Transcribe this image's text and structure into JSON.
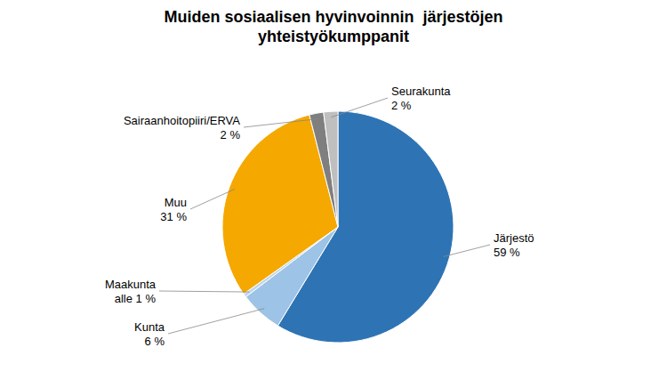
{
  "chart_data": {
    "type": "pie",
    "title": "Muiden sosiaalisen hyvinvoinnin  järjestöjen\nyhteistyökumppanit",
    "categories": [
      "Järjestö",
      "Kunta",
      "Maakunta",
      "Muu",
      "Sairaanhoitopiiri/ERVA",
      "Seurakunta"
    ],
    "values": [
      59,
      6,
      0.5,
      31,
      2,
      2
    ],
    "value_labels": [
      "59 %",
      "6 %",
      "alle 1 %",
      "31 %",
      "2 %",
      "2 %"
    ],
    "colors": [
      "#2E74B5",
      "#9DC3E6",
      "#BDD7EE",
      "#F5A800",
      "#7F7F7F",
      "#BFBFBF"
    ],
    "data_labels": true
  }
}
